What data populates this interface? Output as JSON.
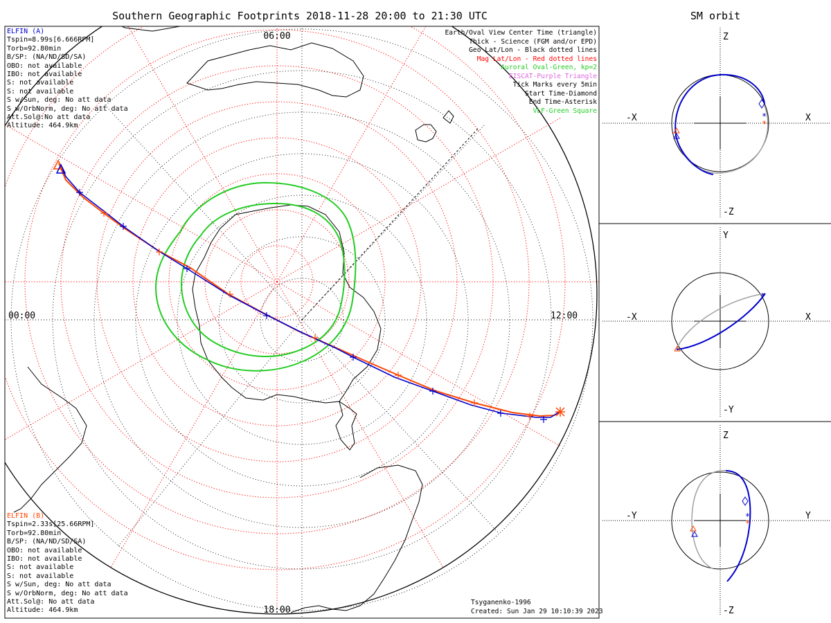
{
  "main_title": "Southern Geographic Footprints 2018-11-28 20:00 to 21:30 UTC",
  "sm_title": "SM orbit",
  "elfin_a": {
    "title": "ELFIN (A)",
    "color": "#0000cc",
    "lines": [
      "Tspin=8.99s[6.666RPM]",
      "Torb=92.80min",
      "B/SP: (NA/ND/SD/SA)",
      "OBO: not available",
      "IBO: not available",
      "S: not available",
      "S: not available",
      "S w/Sun, deg: No att data",
      "S w/OrbNorm, deg: No att data",
      "Att.Sol@:No att data",
      "Altitude: 464.9km"
    ]
  },
  "elfin_b": {
    "title": "ELFIN (B)",
    "color": "#ff4500",
    "lines": [
      "Tspin=2.33s[25.66RPM]",
      "Torb=92.80min",
      "B/SP: (NA/ND/SD/SA)",
      "OBO: not available",
      "IBO: not available",
      "S: not available",
      "S: not available",
      "S w/Sun, deg: No att data",
      "S w/OrbNorm, deg: No att data",
      "Att.Sol@: No att data",
      "Altitude: 464.9km"
    ]
  },
  "legend": [
    {
      "text": "Earth/Oval View Center Time (triangle)",
      "color": "#000000"
    },
    {
      "text": "Thick - Science (FGM and/or EPD)",
      "color": "#000000"
    },
    {
      "text": "Geo Lat/Lon - Black dotted lines",
      "color": "#000000"
    },
    {
      "text": "Mag Lat/Lon - Red dotted lines",
      "color": "#ff0000"
    },
    {
      "text": "Auroral Oval-Green, kp=2",
      "color": "#22cc22"
    },
    {
      "text": "EISCAT-Purple Triangle",
      "color": "#dd66dd"
    },
    {
      "text": "Tick Marks every 5min",
      "color": "#000000"
    },
    {
      "text": "Start Time-Diamond",
      "color": "#000000"
    },
    {
      "text": "End Time-Asterisk",
      "color": "#000000"
    },
    {
      "text": "VLF-Green Square",
      "color": "#22cc22"
    }
  ],
  "map_labels": {
    "top": "06:00",
    "left": "00:00",
    "right": "12:00",
    "bottom": "18:00"
  },
  "model": "Tsyganenko-1996",
  "created": "Created: Sun Jan 29 10:10:39 2023",
  "sm_panels": [
    {
      "top": "Z",
      "bottom": "-Z",
      "left": "-X",
      "right": "X"
    },
    {
      "top": "Y",
      "bottom": "-Y",
      "left": "-X",
      "right": "X"
    },
    {
      "top": "Z",
      "bottom": "-Z",
      "left": "-Y",
      "right": "Y"
    }
  ],
  "colors": {
    "elfin_a": "#0000cc",
    "elfin_b": "#ff4500",
    "auroral_oval": "#22cc22",
    "mag_grid": "#ff0000",
    "orbit_shadow": "#a0a0a0"
  }
}
